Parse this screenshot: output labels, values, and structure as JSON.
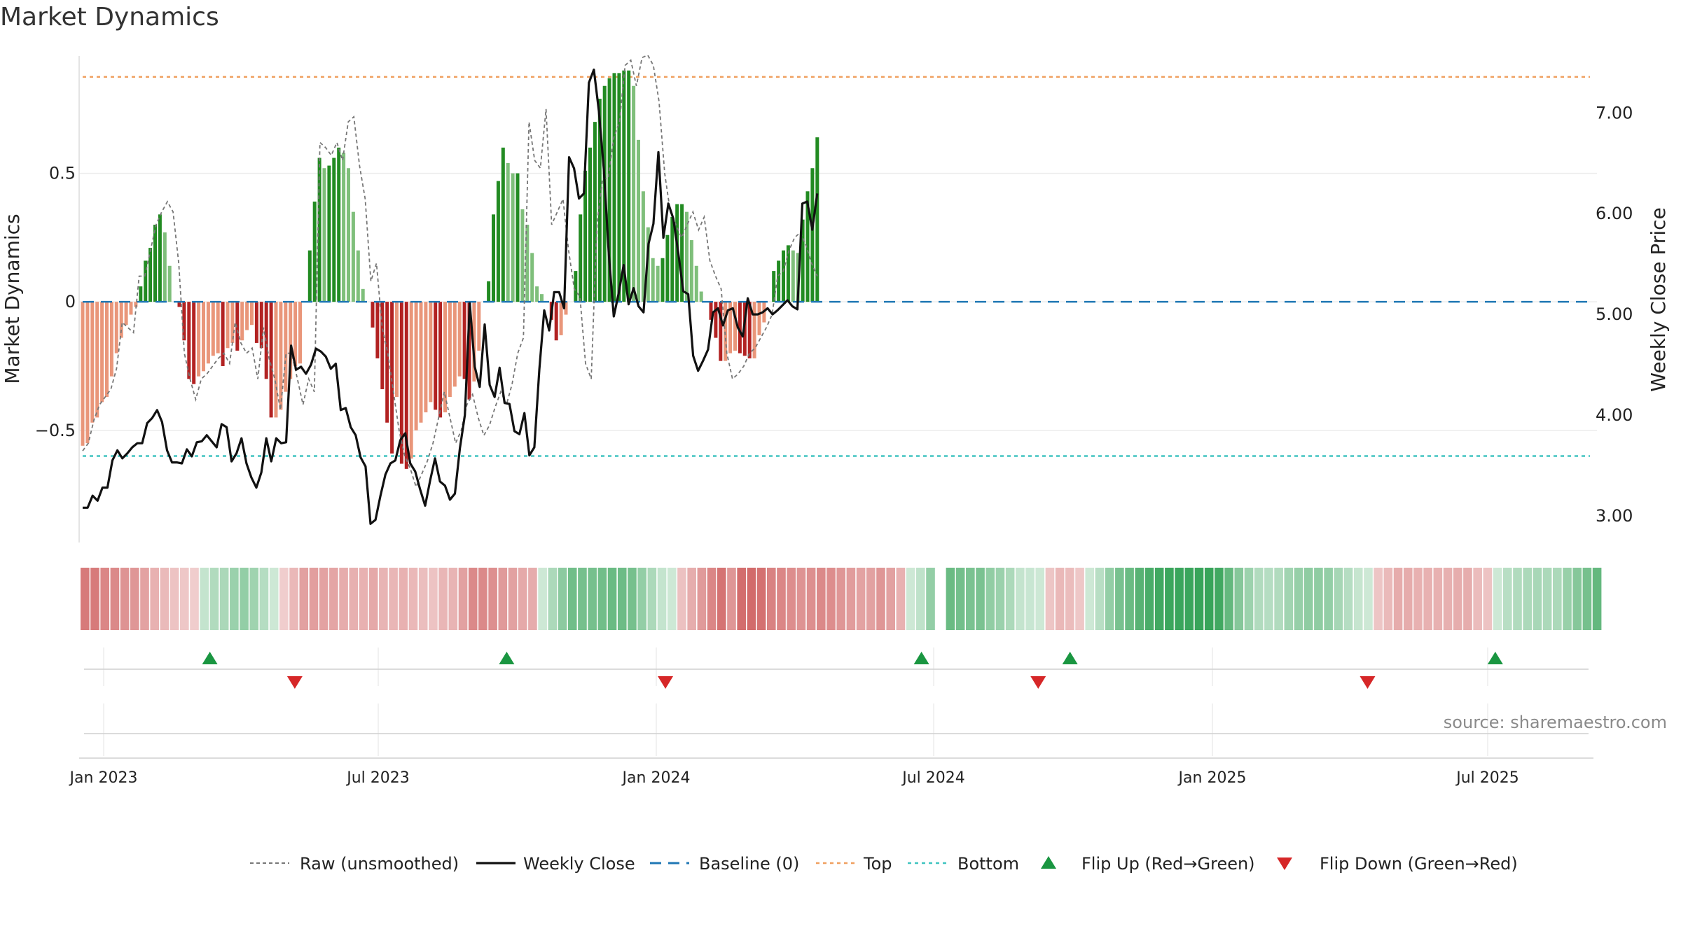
{
  "chart_data": {
    "type": "bar",
    "title": "Market Dynamics",
    "ylabel_left": "Market Dynamics",
    "ylabel_right": "Weekly Close Price",
    "source_note": "source: sharemaestro.com",
    "left_ticks": [
      {
        "v": 0.5,
        "label": "0.5"
      },
      {
        "v": 0,
        "label": "0"
      },
      {
        "v": -0.5,
        "label": "−0.5"
      }
    ],
    "right_ticks": [
      {
        "v": 7,
        "label": "7.00"
      },
      {
        "v": 6,
        "label": "6.00"
      },
      {
        "v": 5,
        "label": "5.00"
      },
      {
        "v": 4,
        "label": "4.00"
      },
      {
        "v": 3,
        "label": "3.00"
      }
    ],
    "ylim_left": [
      -0.95,
      0.97
    ],
    "ylim_right": [
      2.7,
      7.6
    ],
    "x_start": "2023-01-01",
    "x_ticks": [
      {
        "label": "Jan 2023",
        "date": "2023-01-01"
      },
      {
        "label": "Jul 2023",
        "date": "2023-07-01"
      },
      {
        "label": "Jan 2024",
        "date": "2024-01-01"
      },
      {
        "label": "Jul 2024",
        "date": "2024-07-01"
      },
      {
        "label": "Jan 2025",
        "date": "2025-01-01"
      },
      {
        "label": "Jul 2025",
        "date": "2025-07-01"
      }
    ],
    "reference_lines": {
      "top": 0.875,
      "bottom": -0.6,
      "baseline": 0
    },
    "colors": {
      "strong_green": "#228b22",
      "light_green": "#7fbf7b",
      "strong_red": "#b22222",
      "light_red": "#e9967a",
      "close_line": "#111111",
      "raw_line": "#777777",
      "top_line": "#f0a060",
      "bottom_line": "#40c4c0",
      "baseline": "#1f77b4",
      "flip_up": "#1a9641",
      "flip_down": "#d62728"
    },
    "dynamics": [
      -0.56,
      -0.55,
      -0.47,
      -0.45,
      -0.39,
      -0.37,
      -0.29,
      -0.2,
      -0.14,
      -0.09,
      -0.05,
      -0.02,
      0.06,
      0.16,
      0.21,
      0.3,
      0.34,
      0.27,
      0.14,
      0,
      -0.02,
      -0.15,
      -0.3,
      -0.32,
      -0.29,
      -0.27,
      -0.24,
      -0.21,
      -0.2,
      -0.25,
      -0.18,
      -0.16,
      -0.19,
      -0.15,
      -0.11,
      -0.09,
      -0.16,
      -0.18,
      -0.3,
      -0.45,
      -0.45,
      -0.42,
      -0.35,
      -0.3,
      -0.25,
      -0.24,
      0,
      0.2,
      0.39,
      0.56,
      0.52,
      0.53,
      0.56,
      0.6,
      0.58,
      0.52,
      0.35,
      0.2,
      0.05,
      0,
      -0.1,
      -0.22,
      -0.34,
      -0.47,
      -0.59,
      -0.37,
      -0.63,
      -0.65,
      -0.61,
      -0.5,
      -0.47,
      -0.43,
      -0.39,
      -0.42,
      -0.45,
      -0.43,
      -0.37,
      -0.33,
      -0.29,
      -0.3,
      -0.38,
      -0.31,
      -0.19,
      0,
      0.08,
      0.34,
      0.47,
      0.6,
      0.54,
      0.5,
      0.5,
      0.36,
      0.3,
      0.19,
      0.06,
      0.03,
      0,
      -0.07,
      -0.15,
      -0.13,
      -0.05,
      0,
      0.12,
      0.34,
      0.51,
      0.6,
      0.7,
      0.79,
      0.84,
      0.87,
      0.89,
      0.89,
      0.9,
      0.9,
      0.84,
      0.63,
      0.43,
      0.29,
      0.17,
      0.14,
      0.17,
      0.26,
      0.33,
      0.38,
      0.38,
      0.35,
      0.24,
      0.14,
      0.04,
      0,
      -0.07,
      -0.14,
      -0.23,
      -0.23,
      -0.2,
      -0.19,
      -0.2,
      -0.21,
      -0.22,
      -0.22,
      -0.13,
      -0.08,
      0,
      0.12,
      0.16,
      0.2,
      0.22,
      0.2,
      0.19,
      0.32,
      0.43,
      0.52,
      0.64
    ],
    "close_prices": [
      3.08,
      3.08,
      3.2,
      3.15,
      3.28,
      3.28,
      3.55,
      3.65,
      3.57,
      3.62,
      3.68,
      3.72,
      3.72,
      3.92,
      3.97,
      4.05,
      3.93,
      3.65,
      3.53,
      3.53,
      3.52,
      3.66,
      3.59,
      3.73,
      3.74,
      3.8,
      3.74,
      3.68,
      3.91,
      3.88,
      3.54,
      3.62,
      3.77,
      3.52,
      3.38,
      3.28,
      3.43,
      3.77,
      3.54,
      3.77,
      3.72,
      3.73,
      4.69,
      4.45,
      4.48,
      4.41,
      4.5,
      4.66,
      4.63,
      4.58,
      4.46,
      4.51,
      4.05,
      4.07,
      3.88,
      3.8,
      3.58,
      3.49,
      2.92,
      2.96,
      3.2,
      3.41,
      3.52,
      3.55,
      3.75,
      3.82,
      3.52,
      3.44,
      3.26,
      3.1,
      3.35,
      3.57,
      3.34,
      3.3,
      3.16,
      3.22,
      3.67,
      4.0,
      5.11,
      4.48,
      4.28,
      4.9,
      4.3,
      4.18,
      4.47,
      4.12,
      4.11,
      3.84,
      3.81,
      4.02,
      3.6,
      3.68,
      4.45,
      5.04,
      4.84,
      5.22,
      5.22,
      5.06,
      6.56,
      6.45,
      6.15,
      6.2,
      7.3,
      7.43,
      7.02,
      6.44,
      5.6,
      4.98,
      5.21,
      5.49,
      5.1,
      5.26,
      5.08,
      5.02,
      5.7,
      5.9,
      6.61,
      5.76,
      6.1,
      5.95,
      5.61,
      5.23,
      5.2,
      4.59,
      4.44,
      4.54,
      4.65,
      5.02,
      5.06,
      4.89,
      5.04,
      5.06,
      4.87,
      4.78,
      5.16,
      5.0,
      5.0,
      5.02,
      5.06,
      5.0,
      5.04,
      5.09,
      5.14,
      5.08,
      5.05,
      6.1,
      6.12,
      5.84,
      6.2
    ],
    "raw_dynamics": [
      -0.58,
      -0.55,
      -0.46,
      -0.4,
      -0.37,
      -0.34,
      -0.26,
      -0.08,
      -0.1,
      -0.12,
      0.1,
      0.1,
      0.2,
      0.3,
      0.35,
      0.39,
      0.35,
      0.15,
      -0.2,
      -0.3,
      -0.38,
      -0.3,
      -0.28,
      -0.25,
      -0.22,
      -0.2,
      -0.24,
      -0.08,
      -0.16,
      -0.2,
      -0.18,
      -0.3,
      -0.1,
      -0.22,
      -0.3,
      -0.42,
      -0.2,
      -0.2,
      -0.3,
      -0.4,
      -0.3,
      -0.35,
      0.62,
      0.6,
      0.57,
      0.62,
      0.55,
      0.7,
      0.72,
      0.53,
      0.4,
      0.08,
      0.15,
      -0.1,
      -0.2,
      -0.35,
      -0.5,
      -0.6,
      -0.65,
      -0.72,
      -0.67,
      -0.62,
      -0.55,
      -0.45,
      -0.35,
      -0.45,
      -0.55,
      -0.5,
      -0.4,
      -0.36,
      -0.45,
      -0.52,
      -0.48,
      -0.41,
      -0.35,
      -0.4,
      -0.32,
      -0.2,
      -0.14,
      0.7,
      0.55,
      0.52,
      0.75,
      0.3,
      0.35,
      0.4,
      0.2,
      0.05,
      0.02,
      -0.24,
      -0.3,
      0.3,
      0.48,
      0.48,
      0.64,
      0.7,
      0.92,
      0.94,
      0.84,
      0.95,
      0.96,
      0.92,
      0.78,
      0.5,
      0.35,
      0.3,
      0.25,
      0.3,
      0.35,
      0.28,
      0.33,
      0.16,
      0.1,
      0.05,
      -0.2,
      -0.3,
      -0.28,
      -0.25,
      -0.2,
      -0.18,
      -0.14,
      -0.1,
      -0.05,
      0.1,
      0.12,
      0.2,
      0.25,
      0.27,
      0.22,
      0.15,
      0.1
    ],
    "flip_up_dates": [
      "2023-03-12",
      "2023-09-24",
      "2024-06-23",
      "2024-09-29",
      "2025-07-06"
    ],
    "flip_down_dates": [
      "2023-05-07",
      "2024-01-07",
      "2024-09-08",
      "2025-04-13"
    ],
    "legend": [
      {
        "label": "Raw (unsmoothed)",
        "kind": "raw"
      },
      {
        "label": "Weekly Close",
        "kind": "close"
      },
      {
        "label": "Baseline (0)",
        "kind": "baseline"
      },
      {
        "label": "Top",
        "kind": "top"
      },
      {
        "label": "Bottom",
        "kind": "bottom"
      },
      {
        "label": "Flip Up (Red→Green)",
        "kind": "flipup"
      },
      {
        "label": "Flip Down (Green→Red)",
        "kind": "flipdown"
      }
    ]
  }
}
